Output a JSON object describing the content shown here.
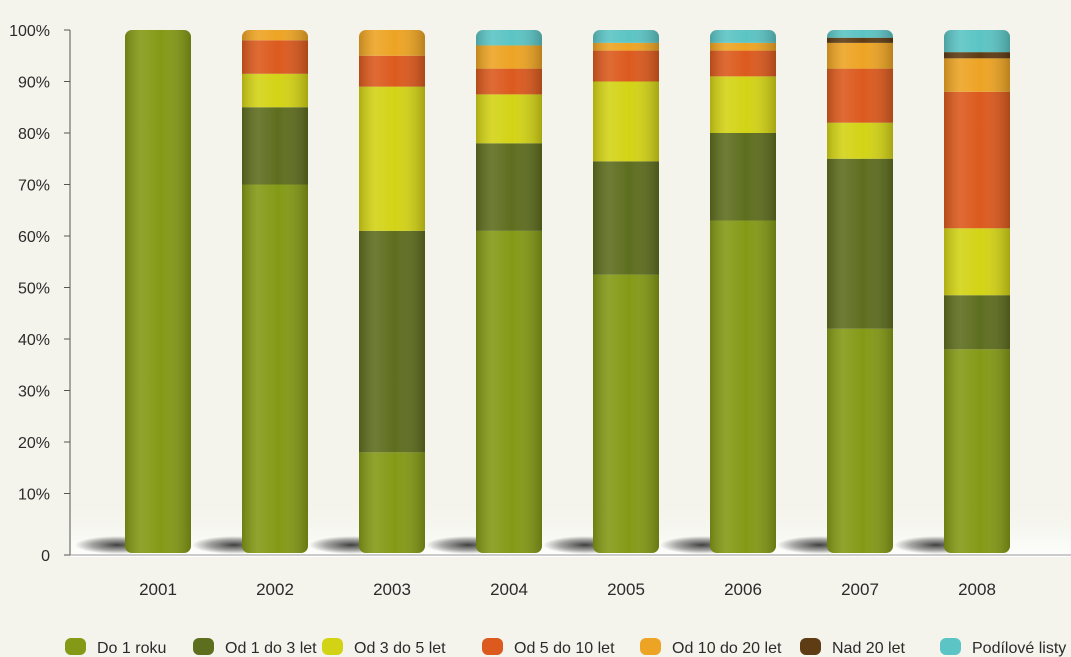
{
  "chart_data": {
    "type": "bar",
    "stacked": true,
    "categories": [
      "2001",
      "2002",
      "2003",
      "2004",
      "2005",
      "2006",
      "2007",
      "2008"
    ],
    "y_ticks": [
      "0",
      "10%",
      "20%",
      "30%",
      "40%",
      "50%",
      "60%",
      "70%",
      "80%",
      "90%",
      "100%"
    ],
    "ylim": [
      0,
      100
    ],
    "legend_position": "bottom",
    "series": [
      {
        "name": "Do 1 roku",
        "color": "#849a16",
        "values": [
          100,
          70,
          18,
          61,
          52.5,
          63,
          42,
          38
        ]
      },
      {
        "name": "Od 1 do 3 let",
        "color": "#5e6e1f",
        "values": [
          0,
          15,
          43,
          17,
          22,
          17,
          33,
          10.5
        ]
      },
      {
        "name": "Od 3 do 5 let",
        "color": "#d3d316",
        "values": [
          0,
          6.5,
          28,
          9.5,
          15.5,
          11,
          7,
          13
        ]
      },
      {
        "name": "Od 5 do 10 let",
        "color": "#dc5a1e",
        "values": [
          0,
          6.5,
          6,
          5,
          6,
          5,
          10.5,
          26.5
        ]
      },
      {
        "name": "Od 10 do 20 let",
        "color": "#eda424",
        "values": [
          0,
          2,
          5,
          4.5,
          1.5,
          1.5,
          5,
          6.5
        ]
      },
      {
        "name": "Nad 20 let",
        "color": "#5e3c14",
        "values": [
          0,
          0,
          0,
          0,
          0,
          0,
          1,
          1.2
        ]
      },
      {
        "name": "Podílové listy",
        "color": "#5cc4c4",
        "values": [
          0,
          0,
          0,
          3,
          2.5,
          2.5,
          1.5,
          4.3
        ]
      }
    ]
  }
}
